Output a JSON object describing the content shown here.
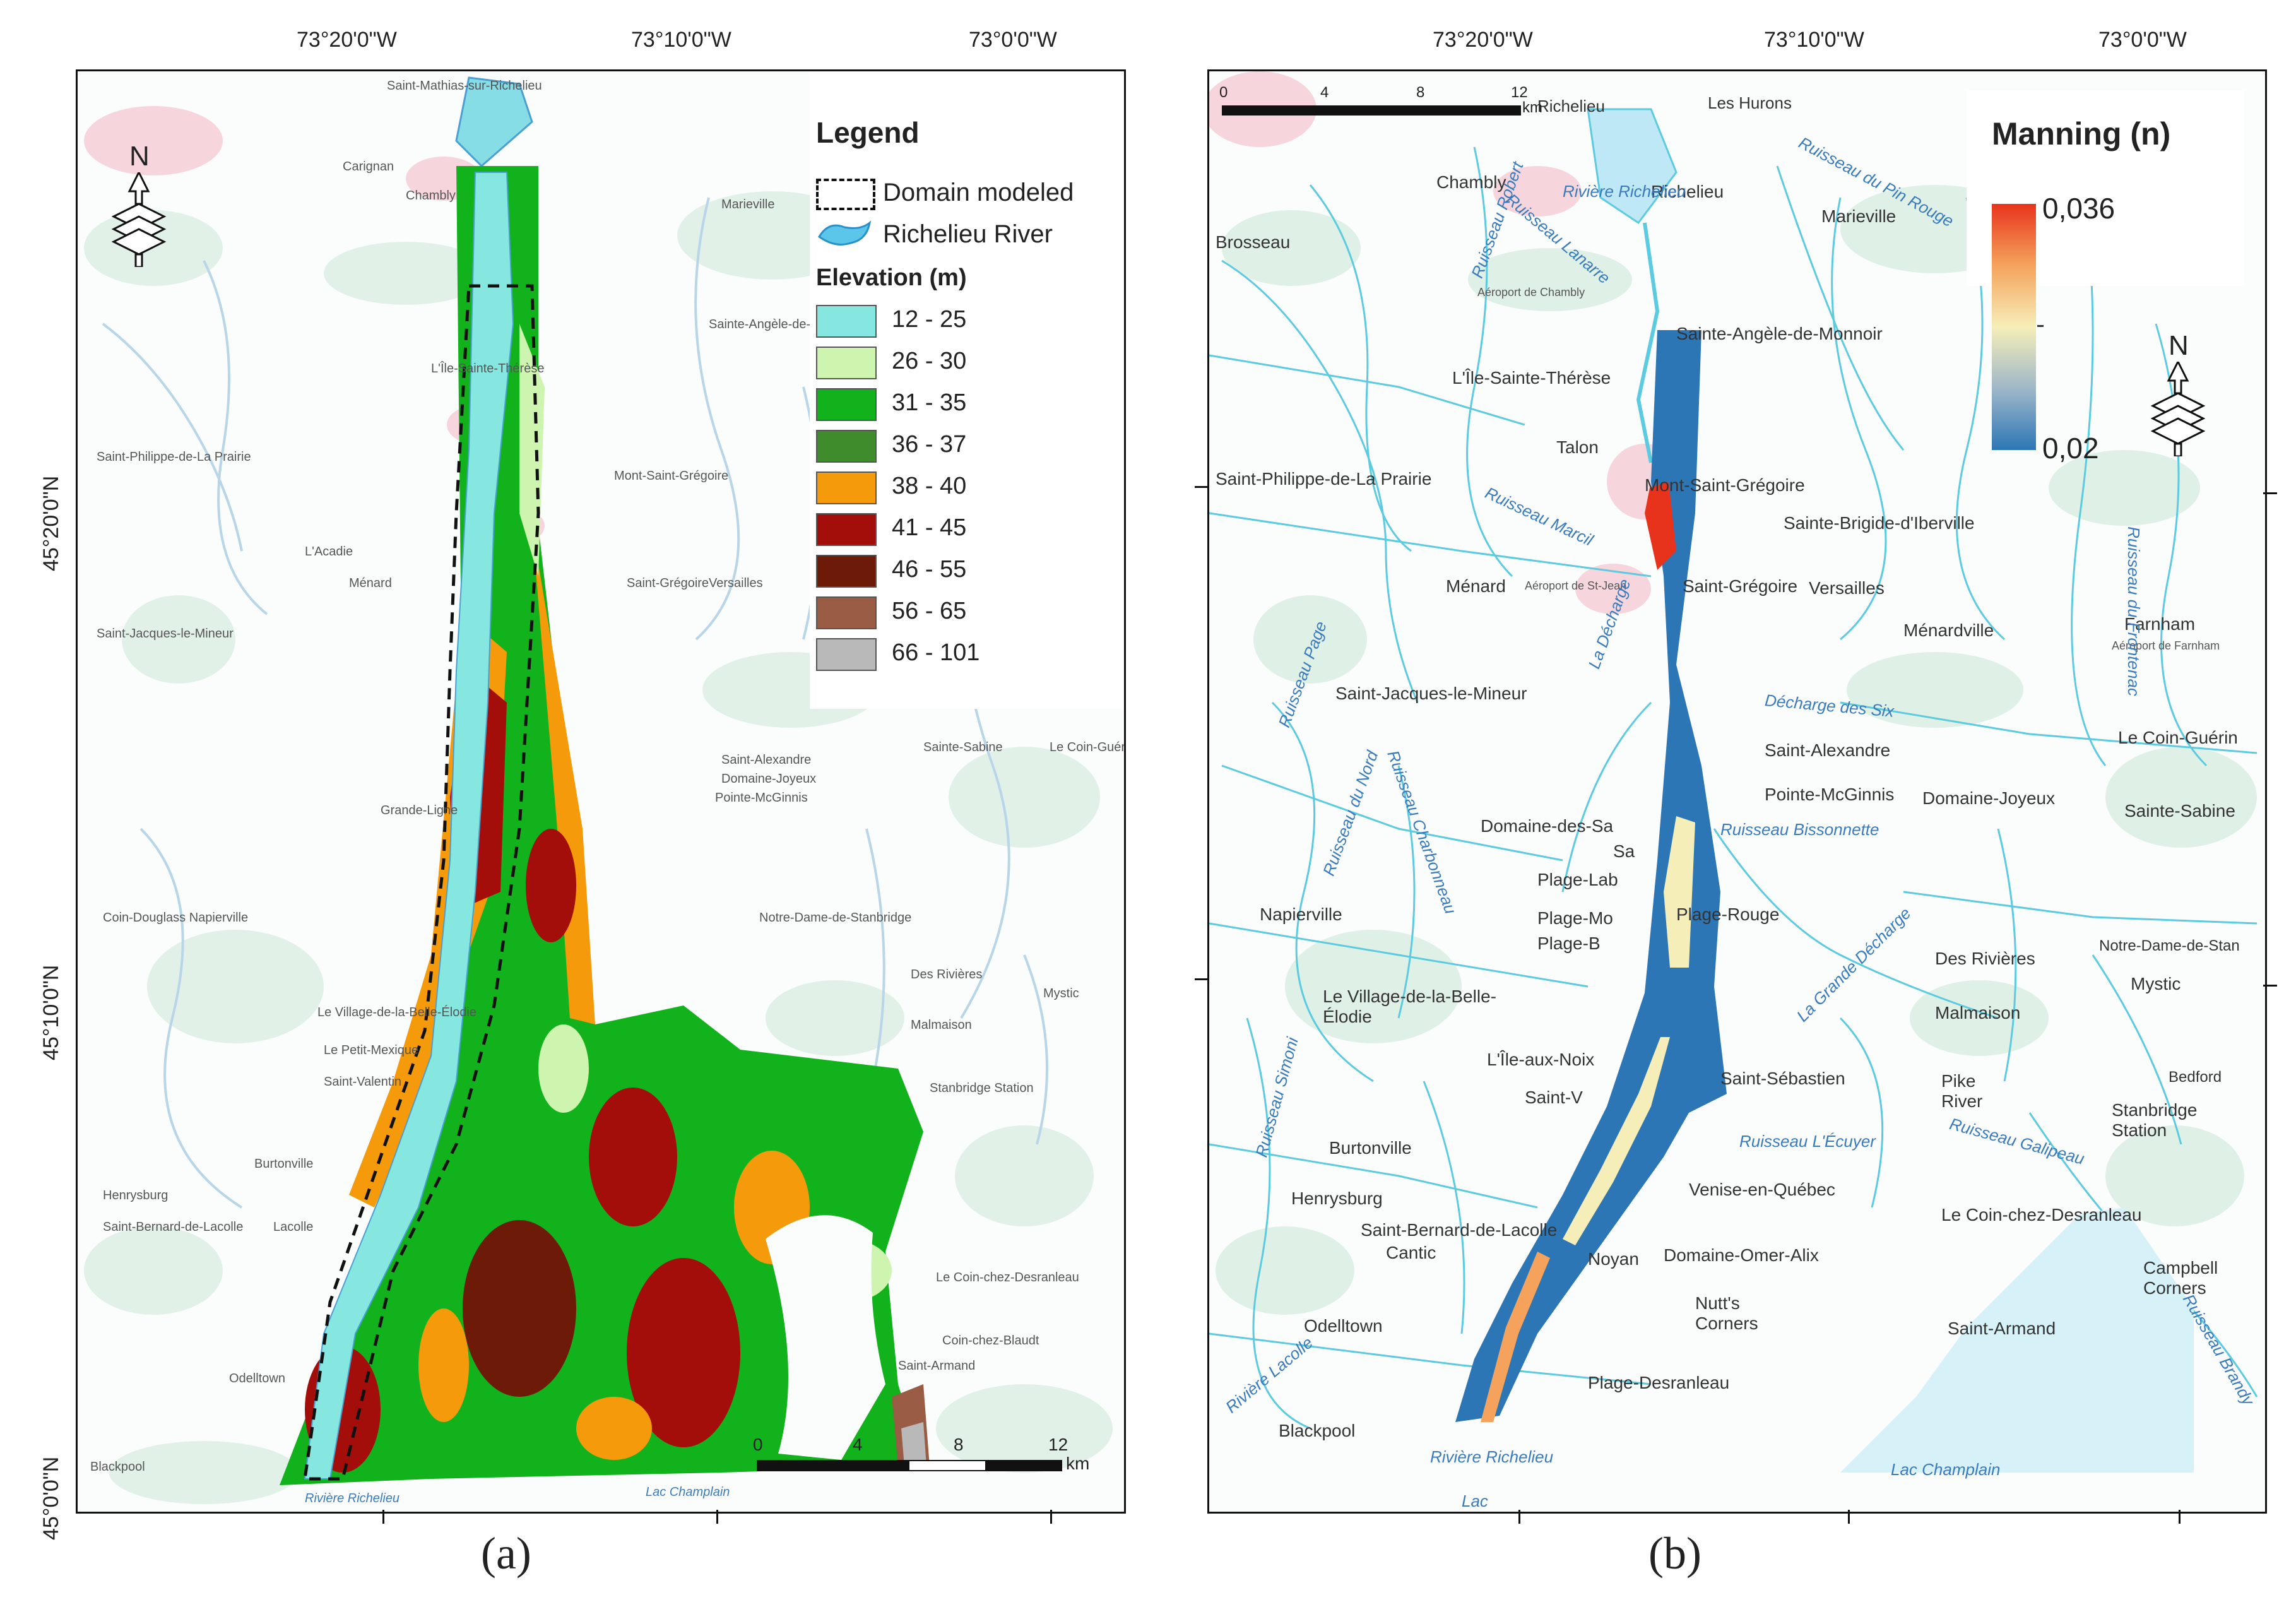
{
  "panel_a": {
    "label": "(a)",
    "lon_labels": [
      "73°20'0\"W",
      "73°10'0\"W",
      "73°0'0\"W"
    ],
    "lat_labels": [
      "45°20'0\"N",
      "45°10'0\"N",
      "45°0'0\"N"
    ],
    "north_letter": "N",
    "legend": {
      "title": "Legend",
      "domain_label": "Domain modeled",
      "river_label": "Richelieu River",
      "elevation_title": "Elevation (m)",
      "classes": [
        {
          "label": "12 - 25",
          "color": "#86e6e0"
        },
        {
          "label": "26 - 30",
          "color": "#cdf5b0"
        },
        {
          "label": "31 - 35",
          "color": "#12b21c"
        },
        {
          "label": "36 - 37",
          "color": "#3e8c2c"
        },
        {
          "label": "38 - 40",
          "color": "#f59a0a"
        },
        {
          "label": "41 - 45",
          "color": "#a30d0a"
        },
        {
          "label": "46 - 55",
          "color": "#6e1a08"
        },
        {
          "label": "56 - 65",
          "color": "#9a5c44"
        },
        {
          "label": "66 - 101",
          "color": "#b9b9b9"
        }
      ]
    },
    "scale": {
      "ticks": [
        "0",
        "4",
        "8",
        "12"
      ],
      "unit": "km"
    },
    "places": [
      "Saint-Mathias-sur-Richelieu",
      "Chambly",
      "Carignan",
      "Marieville",
      "Sainte-Angèle-de-Monnoir",
      "L'Île-Sainte-Thérèse",
      "Saint-Philippe-de-La Prairie",
      "Mont-Saint-Grégoire",
      "L'Acadie",
      "Ménard",
      "Saint-Grégoire",
      "Versailles",
      "Saint-Jacques-le-Mineur",
      "Saint-Alexandre",
      "Domaine-Joyeux",
      "Pointe-McGinnis",
      "Sainte-Sabine",
      "Le Coin-Guérin",
      "Grande-Ligne",
      "Coin-Douglass Napierville",
      "Notre-Dame-de-Stanbridge",
      "Des Rivières",
      "Malmaison",
      "Mystic",
      "Le Village-de-la-Belle-Élodie",
      "Le Petit-Mexique",
      "Saint-Valentin",
      "Stanbridge Station",
      "Burtonville",
      "Henrysburg",
      "Saint-Bernard-de-Lacolle",
      "Lacolle",
      "Le Coin-chez-Desranleau",
      "Coin-chez-Blaudt",
      "Saint-Armand",
      "Odelltown",
      "Blackpool",
      "Rivière Richelieu",
      "Lac Champlain"
    ]
  },
  "panel_b": {
    "label": "(b)",
    "lon_labels": [
      "73°20'0\"W",
      "73°10'0\"W",
      "73°0'0\"W"
    ],
    "north_letter": "N",
    "legend": {
      "title": "Manning (n)",
      "max_label": "0,036",
      "min_label": "0,02",
      "gradient": [
        "#e8331c",
        "#f5a35c",
        "#f6eeb8",
        "#9fb7c9",
        "#2c76b5"
      ]
    },
    "scale": {
      "ticks": [
        "0",
        "4",
        "8",
        "12"
      ],
      "unit": "km"
    },
    "places": [
      "Les Hurons",
      "Richelieu",
      "Chambly",
      "Richelieu",
      "Marieville",
      "Brosseau",
      "Aéroport de Chambly",
      "Sainte-Angèle-de-Monnoir",
      "L'Île-Sainte-Thérèse",
      "Talon",
      "Saint-Philippe-de-La Prairie",
      "Mont-Saint-Grégoire",
      "Sainte-Brigide-d'Iberville",
      "Ménard",
      "Aéroport de St-Jean",
      "Saint-Grégoire",
      "Versailles",
      "Ménardville",
      "Farnham",
      "Aéroport de Farnham",
      "Saint-Jacques-le-Mineur",
      "Saint-Alexandre",
      "Le Coin-Guérin",
      "Pointe-McGinnis",
      "Domaine-Joyeux",
      "Sainte-Sabine",
      "Domaine-des-Sa",
      "Sa",
      "Plage-Lab",
      "Plage-Mo",
      "Plage-Rouge",
      "Plage-B",
      "Napierville",
      "Des Rivières",
      "Notre-Dame-de-Stan",
      "Mystic",
      "Malmaison",
      "Le Village-de-la-Belle-Élodie",
      "L'Île-aux-Noix",
      "Saint-V",
      "Saint-Sébastien",
      "Pike River",
      "Bedford",
      "Stanbridge Station",
      "Burtonville",
      "Henrysburg",
      "Venise-en-Québec",
      "Saint-Bernard-de-Lacolle",
      "Cantic",
      "Noyan",
      "Domaine-Omer-Alix",
      "Le Coin-chez-Desranleau",
      "Campbell Corners",
      "Odelltown",
      "Nutt's Corners",
      "Saint-Armand",
      "Plage-Desranleau",
      "Blackpool"
    ],
    "rivers": [
      "Rivière Richelieu",
      "Ruisseau du Pin Rouge",
      "Ruisseau Robert",
      "Ruisseau Lanarre",
      "Ruisseau Marcil",
      "La Décharge",
      "Décharge des Six",
      "Ruisseau Bissonnette",
      "Ruisseau du Nord",
      "Ruisseau Charbonneau",
      "Ruisseau Page",
      "La Grande Décharge",
      "Ruisseau L'Écuyer",
      "Ruisseau Galipeau",
      "Ruisseau Simoni",
      "Ruisseau du Frontenac",
      "Rivière Lacolle",
      "Ruisseau Brandy",
      "Lac Champlain",
      "Rivière Richelieu",
      "Lac"
    ]
  }
}
